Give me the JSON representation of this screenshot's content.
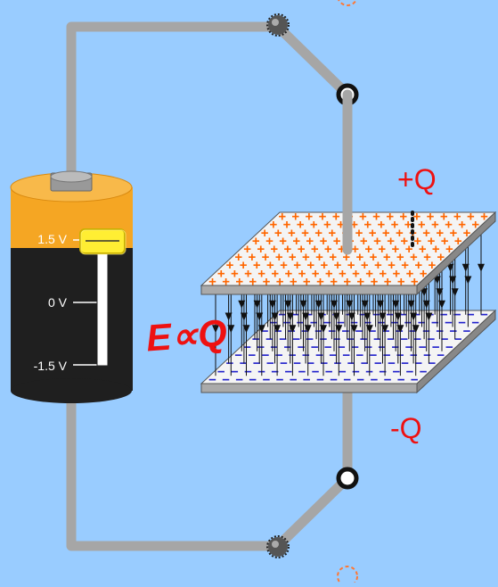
{
  "battery": {
    "labels": {
      "top": "1.5 V",
      "middle": "0 V",
      "bottom": "-1.5 V"
    },
    "voltage_fraction": 1.0
  },
  "capacitor": {
    "top_charge_label": "+Q",
    "bottom_charge_label": "-Q",
    "plus_symbol": "+",
    "minus_symbol": "−"
  },
  "annotation": "E∝Q",
  "colors": {
    "background": "#99ccff",
    "wire": "#a6a6a6",
    "battery_top": "#f39c12",
    "battery_bottom": "#1f1f1f",
    "plus_charge": "#ff6600",
    "minus_charge": "#2222cc",
    "label_red": "#ee1111",
    "slider_handle": "#ffee33"
  },
  "icons": {
    "switch_top": "switch-pivot-icon",
    "switch_bottom": "switch-pivot-icon",
    "contact_top": "circle-contact-icon",
    "contact_bottom": "circle-contact-icon"
  }
}
